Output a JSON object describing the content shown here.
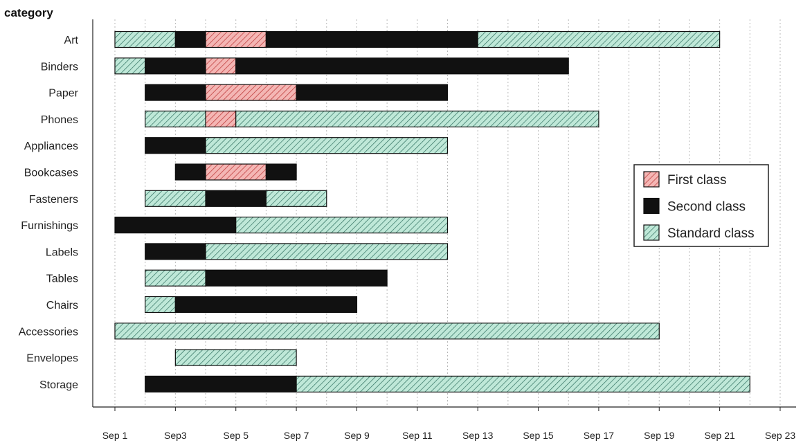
{
  "chart_data": {
    "type": "bar",
    "orientation": "horizontal-stacked-timeline",
    "ylabel": "category",
    "x_ticks": [
      "Sep 1",
      "Sep3",
      "Sep 5",
      "Sep 7",
      "Sep 9",
      "Sep 11",
      "Sep 13",
      "Sep 15",
      "Sep 17",
      "Sep 19",
      "Sep 21",
      "Sep 23"
    ],
    "x_range": [
      "Sep 1",
      "Sep 23"
    ],
    "grid": "vertical-dotted",
    "legend_position": "right",
    "legend": [
      {
        "key": "first",
        "label": "First class",
        "color": "#f4b6b4",
        "hatch": "#c04040"
      },
      {
        "key": "second",
        "label": "Second class",
        "color": "#111111",
        "hatch": "#111111"
      },
      {
        "key": "standard",
        "label": "Standard class",
        "color": "#bfe8d8",
        "hatch": "#2f6f5f"
      }
    ],
    "categories": [
      "Art",
      "Binders",
      "Paper",
      "Phones",
      "Appliances",
      "Bookcases",
      "Fasteners",
      "Furnishings",
      "Labels",
      "Tables",
      "Chairs",
      "Accessories",
      "Envelopes",
      "Storage"
    ],
    "rows": [
      {
        "category": "Art",
        "segments": [
          {
            "class": "standard",
            "start": "Sep 1",
            "end": "Sep 3"
          },
          {
            "class": "second",
            "start": "Sep 3",
            "end": "Sep 4"
          },
          {
            "class": "first",
            "start": "Sep 4",
            "end": "Sep 6"
          },
          {
            "class": "second",
            "start": "Sep 6",
            "end": "Sep 13"
          },
          {
            "class": "standard",
            "start": "Sep 13",
            "end": "Sep 21"
          }
        ]
      },
      {
        "category": "Binders",
        "segments": [
          {
            "class": "standard",
            "start": "Sep 1",
            "end": "Sep 2"
          },
          {
            "class": "second",
            "start": "Sep 2",
            "end": "Sep 4"
          },
          {
            "class": "first",
            "start": "Sep 4",
            "end": "Sep 5"
          },
          {
            "class": "second",
            "start": "Sep 5",
            "end": "Sep 16"
          }
        ]
      },
      {
        "category": "Paper",
        "segments": [
          {
            "class": "second",
            "start": "Sep 2",
            "end": "Sep 4"
          },
          {
            "class": "first",
            "start": "Sep 4",
            "end": "Sep 7"
          },
          {
            "class": "second",
            "start": "Sep 7",
            "end": "Sep 12"
          }
        ]
      },
      {
        "category": "Phones",
        "segments": [
          {
            "class": "standard",
            "start": "Sep 2",
            "end": "Sep 4"
          },
          {
            "class": "first",
            "start": "Sep 4",
            "end": "Sep 5"
          },
          {
            "class": "standard",
            "start": "Sep 5",
            "end": "Sep 17"
          }
        ]
      },
      {
        "category": "Appliances",
        "segments": [
          {
            "class": "second",
            "start": "Sep 2",
            "end": "Sep 4"
          },
          {
            "class": "standard",
            "start": "Sep 4",
            "end": "Sep 12"
          }
        ]
      },
      {
        "category": "Bookcases",
        "segments": [
          {
            "class": "second",
            "start": "Sep 3",
            "end": "Sep 4"
          },
          {
            "class": "first",
            "start": "Sep 4",
            "end": "Sep 6"
          },
          {
            "class": "second",
            "start": "Sep 6",
            "end": "Sep 7"
          }
        ]
      },
      {
        "category": "Fasteners",
        "segments": [
          {
            "class": "standard",
            "start": "Sep 2",
            "end": "Sep 4"
          },
          {
            "class": "second",
            "start": "Sep 4",
            "end": "Sep 6"
          },
          {
            "class": "standard",
            "start": "Sep 6",
            "end": "Sep 8"
          }
        ]
      },
      {
        "category": "Furnishings",
        "segments": [
          {
            "class": "second",
            "start": "Sep 1",
            "end": "Sep 5"
          },
          {
            "class": "standard",
            "start": "Sep 5",
            "end": "Sep 12"
          }
        ]
      },
      {
        "category": "Labels",
        "segments": [
          {
            "class": "second",
            "start": "Sep 2",
            "end": "Sep 4"
          },
          {
            "class": "standard",
            "start": "Sep 4",
            "end": "Sep 12"
          }
        ]
      },
      {
        "category": "Tables",
        "segments": [
          {
            "class": "standard",
            "start": "Sep 2",
            "end": "Sep 4"
          },
          {
            "class": "second",
            "start": "Sep 4",
            "end": "Sep 10"
          }
        ]
      },
      {
        "category": "Chairs",
        "segments": [
          {
            "class": "standard",
            "start": "Sep 2",
            "end": "Sep 3"
          },
          {
            "class": "second",
            "start": "Sep 3",
            "end": "Sep 9"
          }
        ]
      },
      {
        "category": "Accessories",
        "segments": [
          {
            "class": "standard",
            "start": "Sep 1",
            "end": "Sep 19"
          }
        ]
      },
      {
        "category": "Envelopes",
        "segments": [
          {
            "class": "standard",
            "start": "Sep 3",
            "end": "Sep 7"
          }
        ]
      },
      {
        "category": "Storage",
        "segments": [
          {
            "class": "second",
            "start": "Sep 2",
            "end": "Sep 7"
          },
          {
            "class": "standard",
            "start": "Sep 7",
            "end": "Sep 22"
          }
        ]
      }
    ]
  }
}
